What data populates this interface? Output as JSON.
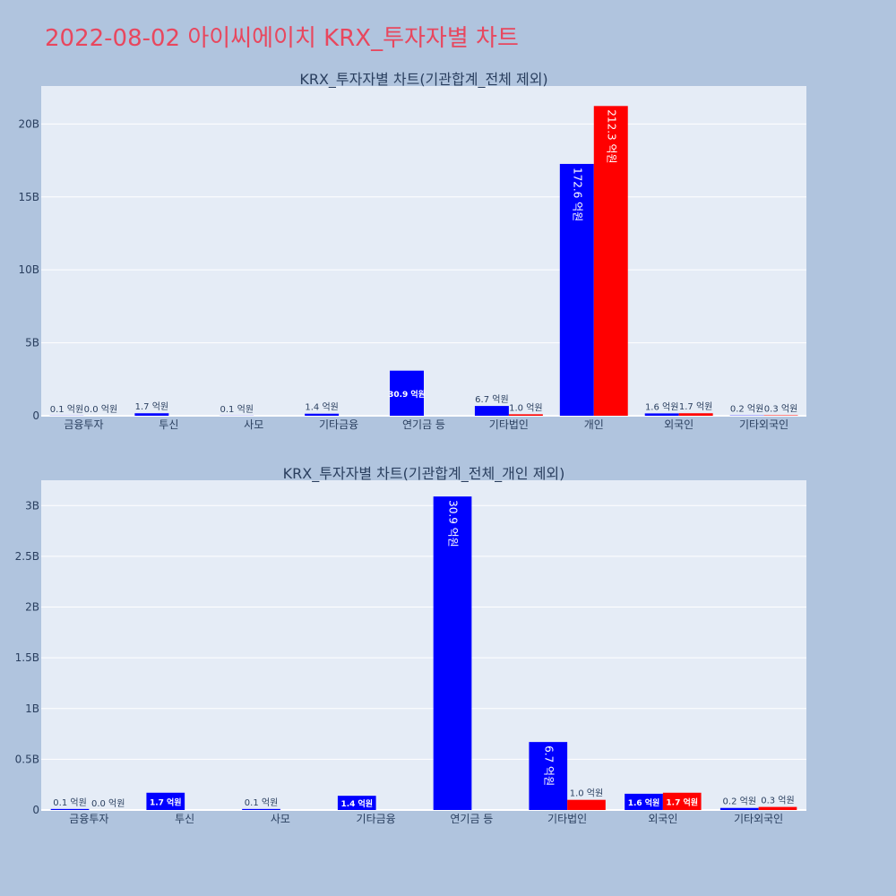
{
  "page": {
    "title": "2022-08-02 아이씨에이치 KRX_투자자별 차트"
  },
  "colors": {
    "background": "#b0c4de",
    "plot_bg": "#e5ecf6",
    "buy": "#0000ff",
    "sell": "#ff0000",
    "title": "#e8475e",
    "text": "#2a3f5f"
  },
  "chart_data": [
    {
      "type": "bar",
      "title": "KRX_투자자별 차트(기관합계_전체 제외)",
      "categories": [
        "금융투자",
        "투신",
        "사모",
        "기타금융",
        "연기금 등",
        "기타법인",
        "개인",
        "외국인",
        "기타외국인"
      ],
      "ylim": [
        0,
        22600000000
      ],
      "yticks": [
        0,
        5000000000,
        10000000000,
        15000000000,
        20000000000
      ],
      "yticklabels": [
        "0",
        "5B",
        "10B",
        "15B",
        "20B"
      ],
      "grid": true,
      "series": [
        {
          "color": "#0000ff",
          "values": [
            10000000,
            170000000,
            10000000,
            140000000,
            3090000000,
            670000000,
            17260000000,
            160000000,
            20000000
          ],
          "labels": [
            "0.1 억원",
            "1.7 억원",
            "0.1 억원",
            "1.4 억원",
            "30.9 억원",
            "6.7 억원",
            "172.6 억원",
            "1.6 억원",
            "0.2 억원"
          ]
        },
        {
          "color": "#ff0000",
          "values": [
            0,
            null,
            null,
            null,
            null,
            100000000,
            21230000000,
            170000000,
            30000000
          ],
          "labels": [
            "0.0 억원",
            "",
            "",
            "",
            "",
            "1.0 억원",
            "212.3 억원",
            "1.7 억원",
            "0.3 억원"
          ]
        }
      ]
    },
    {
      "type": "bar",
      "title": "KRX_투자자별 차트(기관합계_전체_개인 제외)",
      "categories": [
        "금융투자",
        "투신",
        "사모",
        "기타금융",
        "연기금 등",
        "기타법인",
        "외국인",
        "기타외국인"
      ],
      "ylim": [
        0,
        3250000000
      ],
      "yticks": [
        0,
        500000000,
        1000000000,
        1500000000,
        2000000000,
        2500000000,
        3000000000
      ],
      "yticklabels": [
        "0",
        "0.5B",
        "1B",
        "1.5B",
        "2B",
        "2.5B",
        "3B"
      ],
      "grid": true,
      "series": [
        {
          "color": "#0000ff",
          "values": [
            10000000,
            170000000,
            10000000,
            140000000,
            3090000000,
            670000000,
            160000000,
            20000000
          ],
          "labels": [
            "0.1 억원",
            "1.7 억원",
            "0.1 억원",
            "1.4 억원",
            "30.9 억원",
            "6.7 억원",
            "1.6 억원",
            "0.2 억원"
          ]
        },
        {
          "color": "#ff0000",
          "values": [
            0,
            null,
            null,
            null,
            null,
            100000000,
            170000000,
            30000000
          ],
          "labels": [
            "0.0 억원",
            "",
            "",
            "",
            "",
            "1.0 억원",
            "1.7 억원",
            "0.3 억원"
          ]
        }
      ]
    }
  ]
}
